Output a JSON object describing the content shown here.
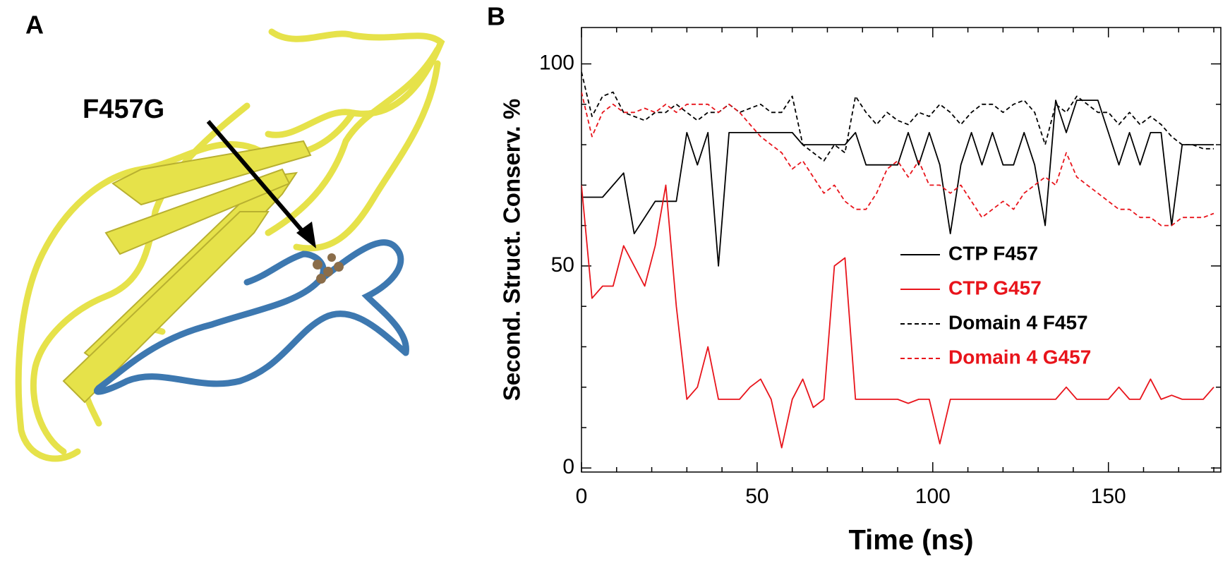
{
  "panel_a": {
    "label": "A",
    "annotation": "F457G"
  },
  "chart_data": {
    "type": "line",
    "panel_label": "B",
    "xlabel": "Time (ns)",
    "ylabel": "Second. Struct. Conserv. %",
    "xlim": [
      0,
      182
    ],
    "ylim": [
      -1,
      109
    ],
    "xticks": [
      0,
      50,
      100,
      150
    ],
    "yticks": [
      0,
      50,
      100
    ],
    "xminorticks": [
      10,
      20,
      30,
      40,
      60,
      70,
      80,
      90,
      110,
      120,
      130,
      140,
      160,
      170,
      180
    ],
    "yminorticks": [
      10,
      20,
      30,
      40,
      60,
      70,
      80,
      90
    ],
    "legend": "center-right",
    "x": [
      0,
      3,
      6,
      9,
      12,
      15,
      18,
      21,
      24,
      27,
      30,
      33,
      36,
      39,
      42,
      45,
      48,
      51,
      54,
      57,
      60,
      63,
      66,
      69,
      72,
      75,
      78,
      81,
      84,
      87,
      90,
      93,
      96,
      99,
      102,
      105,
      108,
      111,
      114,
      117,
      120,
      123,
      126,
      129,
      132,
      135,
      138,
      141,
      144,
      147,
      150,
      153,
      156,
      159,
      162,
      165,
      168,
      171,
      174,
      177,
      180
    ],
    "series": [
      {
        "name": "CTP F457",
        "color": "#000000",
        "linestyle": "solid",
        "values": [
          67,
          67,
          67,
          70,
          73,
          58,
          62,
          66,
          66,
          66,
          83,
          75,
          83,
          50,
          83,
          83,
          83,
          83,
          83,
          83,
          83,
          80,
          80,
          80,
          80,
          80,
          83,
          75,
          75,
          75,
          75,
          83,
          75,
          83,
          75,
          58,
          75,
          83,
          75,
          83,
          75,
          75,
          83,
          75,
          60,
          91,
          83,
          91,
          91,
          91,
          83,
          75,
          83,
          75,
          83,
          83,
          60,
          80,
          80,
          80,
          80
        ]
      },
      {
        "name": "CTP G457",
        "color": "#e8141b",
        "linestyle": "solid",
        "values": [
          70,
          42,
          45,
          45,
          55,
          50,
          45,
          55,
          70,
          40,
          17,
          20,
          30,
          17,
          17,
          17,
          20,
          22,
          17,
          5,
          17,
          22,
          15,
          17,
          50,
          52,
          17,
          17,
          17,
          17,
          17,
          16,
          17,
          17,
          6,
          17,
          17,
          17,
          17,
          17,
          17,
          17,
          17,
          17,
          17,
          17,
          20,
          17,
          17,
          17,
          17,
          20,
          17,
          17,
          22,
          17,
          18,
          17,
          17,
          17,
          20
        ]
      },
      {
        "name": "Domain 4 F457",
        "color": "#000000",
        "linestyle": "dashed",
        "values": [
          98,
          87,
          92,
          93,
          88,
          87,
          86,
          88,
          88,
          90,
          88,
          86,
          88,
          88,
          90,
          88,
          89,
          90,
          88,
          88,
          92,
          80,
          78,
          76,
          80,
          78,
          92,
          88,
          85,
          88,
          86,
          85,
          88,
          87,
          90,
          88,
          85,
          88,
          90,
          90,
          88,
          90,
          91,
          88,
          80,
          90,
          88,
          92,
          90,
          88,
          88,
          85,
          88,
          85,
          87,
          85,
          82,
          80,
          80,
          79,
          79
        ]
      },
      {
        "name": "Domain 4 G457",
        "color": "#e8141b",
        "linestyle": "dashed",
        "values": [
          93,
          82,
          88,
          90,
          88,
          88,
          89,
          88,
          90,
          88,
          90,
          90,
          90,
          88,
          90,
          88,
          85,
          82,
          80,
          78,
          74,
          76,
          72,
          68,
          70,
          66,
          64,
          64,
          68,
          74,
          76,
          72,
          76,
          70,
          70,
          68,
          70,
          66,
          62,
          64,
          66,
          64,
          68,
          70,
          72,
          70,
          78,
          72,
          70,
          68,
          66,
          64,
          64,
          62,
          62,
          60,
          60,
          62,
          62,
          62,
          63
        ]
      }
    ]
  }
}
